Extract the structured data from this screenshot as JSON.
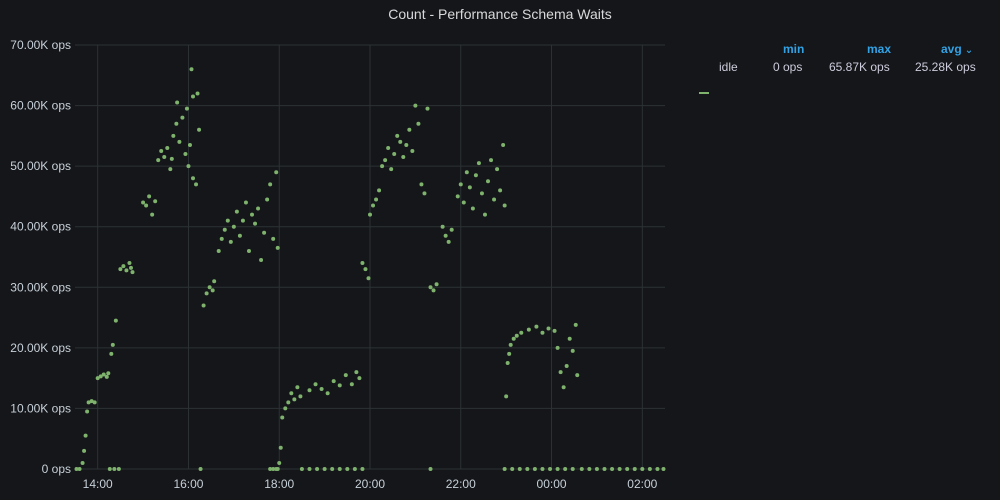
{
  "panel": {
    "title": "Count - Performance Schema Waits"
  },
  "legend": {
    "headers": {
      "min": "min",
      "max": "max",
      "avg": "avg"
    },
    "sort_icon": "chevron-down-icon",
    "series": [
      {
        "name": "idle",
        "color": "#7eb26d",
        "min": "0 ops",
        "max": "65.87K ops",
        "avg": "25.28K ops"
      }
    ]
  },
  "chart_data": {
    "type": "scatter",
    "title": "Count - Performance Schema Waits",
    "xlabel": "",
    "ylabel": "",
    "x_ticks": [
      "14:00",
      "16:00",
      "18:00",
      "20:00",
      "22:00",
      "00:00",
      "02:00"
    ],
    "y_ticks": [
      "0 ops",
      "10.00K ops",
      "20.00K ops",
      "30.00K ops",
      "40.00K ops",
      "50.00K ops",
      "60.00K ops",
      "70.00K ops"
    ],
    "ylim": [
      0,
      70000
    ],
    "xlim": [
      "13:30",
      "02:30"
    ],
    "grid": true,
    "series": [
      {
        "name": "idle",
        "color": "#7eb26d",
        "points": [
          [
            "13:32",
            0
          ],
          [
            "13:36",
            0
          ],
          [
            "13:40",
            1000
          ],
          [
            "13:42",
            3000
          ],
          [
            "13:44",
            5500
          ],
          [
            "13:46",
            9500
          ],
          [
            "13:48",
            11000
          ],
          [
            "13:52",
            11200
          ],
          [
            "13:56",
            11000
          ],
          [
            "14:00",
            15000
          ],
          [
            "14:04",
            15300
          ],
          [
            "14:08",
            15600
          ],
          [
            "14:12",
            15200
          ],
          [
            "14:14",
            15800
          ],
          [
            "14:18",
            19000
          ],
          [
            "14:20",
            20500
          ],
          [
            "14:24",
            24500
          ],
          [
            "14:16",
            0
          ],
          [
            "14:22",
            0
          ],
          [
            "14:28",
            0
          ],
          [
            "14:30",
            33000
          ],
          [
            "14:34",
            33500
          ],
          [
            "14:38",
            32800
          ],
          [
            "14:42",
            34000
          ],
          [
            "14:44",
            33200
          ],
          [
            "14:46",
            32500
          ],
          [
            "15:00",
            44000
          ],
          [
            "15:04",
            43500
          ],
          [
            "15:08",
            45000
          ],
          [
            "15:12",
            42000
          ],
          [
            "15:16",
            44200
          ],
          [
            "15:20",
            51000
          ],
          [
            "15:24",
            52500
          ],
          [
            "15:28",
            51500
          ],
          [
            "15:32",
            53000
          ],
          [
            "15:36",
            49500
          ],
          [
            "15:38",
            51200
          ],
          [
            "15:40",
            55000
          ],
          [
            "15:44",
            57000
          ],
          [
            "15:48",
            54000
          ],
          [
            "15:52",
            58000
          ],
          [
            "15:56",
            52000
          ],
          [
            "16:00",
            50000
          ],
          [
            "15:45",
            60500
          ],
          [
            "15:58",
            59500
          ],
          [
            "16:02",
            53500
          ],
          [
            "16:06",
            48000
          ],
          [
            "16:10",
            47000
          ],
          [
            "16:04",
            66000
          ],
          [
            "16:06",
            61500
          ],
          [
            "16:12",
            62000
          ],
          [
            "16:14",
            56000
          ],
          [
            "16:16",
            0
          ],
          [
            "16:20",
            27000
          ],
          [
            "16:24",
            29000
          ],
          [
            "16:28",
            30000
          ],
          [
            "16:32",
            29500
          ],
          [
            "16:34",
            31000
          ],
          [
            "16:40",
            36000
          ],
          [
            "16:44",
            38000
          ],
          [
            "16:48",
            39500
          ],
          [
            "16:52",
            41000
          ],
          [
            "16:56",
            37500
          ],
          [
            "17:00",
            40000
          ],
          [
            "17:04",
            42500
          ],
          [
            "17:08",
            38500
          ],
          [
            "17:12",
            41000
          ],
          [
            "17:16",
            44000
          ],
          [
            "17:20",
            36000
          ],
          [
            "17:24",
            42000
          ],
          [
            "17:28",
            40500
          ],
          [
            "17:32",
            43000
          ],
          [
            "17:36",
            34500
          ],
          [
            "17:40",
            39000
          ],
          [
            "17:44",
            44500
          ],
          [
            "17:48",
            47000
          ],
          [
            "17:52",
            38000
          ],
          [
            "17:56",
            49000
          ],
          [
            "17:58",
            36500
          ],
          [
            "17:48",
            0
          ],
          [
            "17:52",
            0
          ],
          [
            "17:56",
            0
          ],
          [
            "17:58",
            0
          ],
          [
            "18:00",
            1000
          ],
          [
            "18:02",
            3500
          ],
          [
            "18:04",
            8500
          ],
          [
            "18:08",
            10000
          ],
          [
            "18:12",
            11000
          ],
          [
            "18:16",
            12500
          ],
          [
            "18:20",
            11500
          ],
          [
            "18:24",
            13500
          ],
          [
            "18:28",
            12000
          ],
          [
            "18:30",
            0
          ],
          [
            "18:40",
            0
          ],
          [
            "18:50",
            0
          ],
          [
            "19:00",
            0
          ],
          [
            "19:10",
            0
          ],
          [
            "19:20",
            0
          ],
          [
            "19:30",
            0
          ],
          [
            "19:40",
            0
          ],
          [
            "19:50",
            0
          ],
          [
            "18:40",
            13000
          ],
          [
            "18:48",
            14000
          ],
          [
            "18:56",
            13200
          ],
          [
            "19:04",
            12500
          ],
          [
            "19:12",
            14500
          ],
          [
            "19:20",
            13800
          ],
          [
            "19:28",
            15500
          ],
          [
            "19:36",
            14000
          ],
          [
            "19:42",
            16000
          ],
          [
            "19:46",
            15000
          ],
          [
            "19:50",
            34000
          ],
          [
            "19:54",
            33000
          ],
          [
            "19:58",
            31500
          ],
          [
            "20:00",
            42000
          ],
          [
            "20:04",
            43500
          ],
          [
            "20:08",
            44500
          ],
          [
            "20:12",
            46000
          ],
          [
            "20:16",
            50000
          ],
          [
            "20:20",
            51000
          ],
          [
            "20:24",
            53000
          ],
          [
            "20:28",
            49500
          ],
          [
            "20:32",
            52000
          ],
          [
            "20:36",
            55000
          ],
          [
            "20:40",
            54000
          ],
          [
            "20:44",
            51500
          ],
          [
            "20:48",
            53500
          ],
          [
            "20:52",
            56000
          ],
          [
            "20:56",
            52500
          ],
          [
            "21:00",
            60000
          ],
          [
            "21:04",
            57000
          ],
          [
            "21:08",
            47000
          ],
          [
            "21:12",
            45500
          ],
          [
            "21:16",
            59500
          ],
          [
            "21:20",
            30000
          ],
          [
            "21:24",
            29500
          ],
          [
            "21:28",
            30500
          ],
          [
            "21:20",
            0
          ],
          [
            "21:36",
            40000
          ],
          [
            "21:40",
            38500
          ],
          [
            "21:44",
            37500
          ],
          [
            "21:48",
            39500
          ],
          [
            "21:56",
            45000
          ],
          [
            "22:00",
            47000
          ],
          [
            "22:04",
            44000
          ],
          [
            "22:08",
            49000
          ],
          [
            "22:12",
            46500
          ],
          [
            "22:16",
            43000
          ],
          [
            "22:20",
            48500
          ],
          [
            "22:24",
            50500
          ],
          [
            "22:28",
            45500
          ],
          [
            "22:32",
            42000
          ],
          [
            "22:36",
            47500
          ],
          [
            "22:40",
            51000
          ],
          [
            "22:44",
            44500
          ],
          [
            "22:48",
            49500
          ],
          [
            "22:52",
            46000
          ],
          [
            "22:56",
            53500
          ],
          [
            "22:58",
            43500
          ],
          [
            "22:58",
            0
          ],
          [
            "23:08",
            0
          ],
          [
            "23:18",
            0
          ],
          [
            "23:28",
            0
          ],
          [
            "23:38",
            0
          ],
          [
            "23:48",
            0
          ],
          [
            "23:58",
            0
          ],
          [
            "00:08",
            0
          ],
          [
            "00:18",
            0
          ],
          [
            "00:28",
            0
          ],
          [
            "23:00",
            12000
          ],
          [
            "23:02",
            17500
          ],
          [
            "23:04",
            19000
          ],
          [
            "23:06",
            20500
          ],
          [
            "23:10",
            21500
          ],
          [
            "23:14",
            22000
          ],
          [
            "23:20",
            22500
          ],
          [
            "23:30",
            23000
          ],
          [
            "23:40",
            23500
          ],
          [
            "23:48",
            22500
          ],
          [
            "23:56",
            23200
          ],
          [
            "00:04",
            22800
          ],
          [
            "00:08",
            20000
          ],
          [
            "00:12",
            16000
          ],
          [
            "00:16",
            13500
          ],
          [
            "00:20",
            17000
          ],
          [
            "00:24",
            21500
          ],
          [
            "00:28",
            19500
          ],
          [
            "00:32",
            23800
          ],
          [
            "00:34",
            15500
          ],
          [
            "00:40",
            0
          ],
          [
            "00:50",
            0
          ],
          [
            "01:00",
            0
          ],
          [
            "01:10",
            0
          ],
          [
            "01:20",
            0
          ],
          [
            "01:30",
            0
          ],
          [
            "01:40",
            0
          ],
          [
            "01:50",
            0
          ],
          [
            "02:00",
            0
          ],
          [
            "02:10",
            0
          ],
          [
            "02:20",
            0
          ],
          [
            "02:28",
            0
          ]
        ]
      }
    ]
  }
}
